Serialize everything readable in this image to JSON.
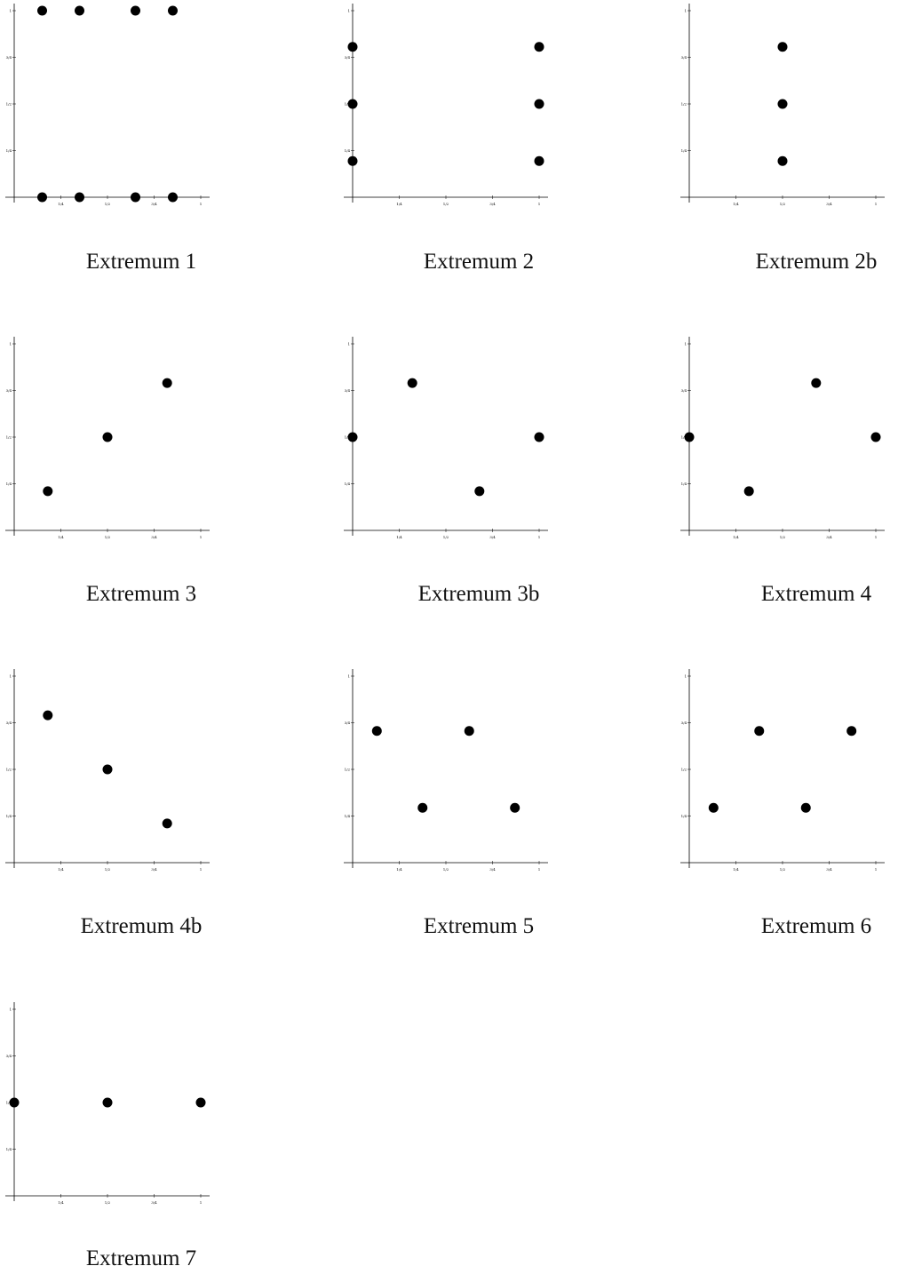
{
  "chart_data": [
    {
      "type": "scatter",
      "title": "Extremum 1",
      "xlim": [
        0,
        1
      ],
      "ylim": [
        0,
        1
      ],
      "xticks": [
        "1/4",
        "1/2",
        "3/4",
        "1"
      ],
      "yticks": [
        "1/4",
        "1/2",
        "3/4",
        "1"
      ],
      "points": [
        [
          0.15,
          1
        ],
        [
          0.35,
          1
        ],
        [
          0.65,
          1
        ],
        [
          0.85,
          1
        ],
        [
          0.15,
          0
        ],
        [
          0.35,
          0
        ],
        [
          0.65,
          0
        ],
        [
          0.85,
          0
        ]
      ]
    },
    {
      "type": "scatter",
      "title": "Extremum 2",
      "xlim": [
        0,
        1
      ],
      "ylim": [
        0,
        1
      ],
      "xticks": [
        "1/4",
        "1/2",
        "3/4",
        "1"
      ],
      "yticks": [
        "1/4",
        "1/2",
        "3/4",
        "1"
      ],
      "points": [
        [
          0,
          0.806
        ],
        [
          0,
          0.5
        ],
        [
          0,
          0.194
        ],
        [
          1,
          0.806
        ],
        [
          1,
          0.5
        ],
        [
          1,
          0.194
        ]
      ]
    },
    {
      "type": "scatter",
      "title": "Extremum 2b",
      "xlim": [
        0,
        1
      ],
      "ylim": [
        0,
        1
      ],
      "xticks": [
        "1/4",
        "1/2",
        "3/4",
        "1"
      ],
      "yticks": [
        "1/4",
        "1/2",
        "3/4",
        "1"
      ],
      "points": [
        [
          0.5,
          0.806
        ],
        [
          0.5,
          0.5
        ],
        [
          0.5,
          0.194
        ]
      ]
    },
    {
      "type": "scatter",
      "title": "Extremum 3",
      "xlim": [
        0,
        1
      ],
      "ylim": [
        0,
        1
      ],
      "xticks": [
        "1/4",
        "1/2",
        "3/4",
        "1"
      ],
      "yticks": [
        "1/4",
        "1/2",
        "3/4",
        "1"
      ],
      "points": [
        [
          0.18,
          0.21
        ],
        [
          0.5,
          0.5
        ],
        [
          0.82,
          0.79
        ]
      ]
    },
    {
      "type": "scatter",
      "title": "Extremum 3b",
      "xlim": [
        0,
        1
      ],
      "ylim": [
        0,
        1
      ],
      "xticks": [
        "1/4",
        "1/2",
        "3/4",
        "1"
      ],
      "yticks": [
        "1/4",
        "1/2",
        "3/4",
        "1"
      ],
      "points": [
        [
          0,
          0.5
        ],
        [
          0.32,
          0.79
        ],
        [
          0.68,
          0.21
        ],
        [
          1,
          0.5
        ]
      ]
    },
    {
      "type": "scatter",
      "title": "Extremum 4",
      "xlim": [
        0,
        1
      ],
      "ylim": [
        0,
        1
      ],
      "xticks": [
        "1/4",
        "1/2",
        "3/4",
        "1"
      ],
      "yticks": [
        "1/4",
        "1/2",
        "3/4",
        "1"
      ],
      "points": [
        [
          0,
          0.5
        ],
        [
          0.32,
          0.21
        ],
        [
          0.68,
          0.79
        ],
        [
          1,
          0.5
        ]
      ]
    },
    {
      "type": "scatter",
      "title": "Extremum 4b",
      "xlim": [
        0,
        1
      ],
      "ylim": [
        0,
        1
      ],
      "xticks": [
        "1/4",
        "1/2",
        "3/4",
        "1"
      ],
      "yticks": [
        "1/4",
        "1/2",
        "3/4",
        "1"
      ],
      "points": [
        [
          0.18,
          0.79
        ],
        [
          0.5,
          0.5
        ],
        [
          0.82,
          0.21
        ]
      ]
    },
    {
      "type": "scatter",
      "title": "Extremum 5",
      "xlim": [
        0,
        1
      ],
      "ylim": [
        0,
        1
      ],
      "xticks": [
        "1/4",
        "1/2",
        "3/4",
        "1"
      ],
      "yticks": [
        "1/4",
        "1/2",
        "3/4",
        "1"
      ],
      "points": [
        [
          0.13,
          0.706
        ],
        [
          0.375,
          0.294
        ],
        [
          0.625,
          0.706
        ],
        [
          0.87,
          0.294
        ]
      ]
    },
    {
      "type": "scatter",
      "title": "Extremum 6",
      "xlim": [
        0,
        1
      ],
      "ylim": [
        0,
        1
      ],
      "xticks": [
        "1/4",
        "1/2",
        "3/4",
        "1"
      ],
      "yticks": [
        "1/4",
        "1/2",
        "3/4",
        "1"
      ],
      "points": [
        [
          0.13,
          0.294
        ],
        [
          0.375,
          0.706
        ],
        [
          0.625,
          0.294
        ],
        [
          0.87,
          0.706
        ]
      ]
    },
    {
      "type": "scatter",
      "title": "Extremum 7",
      "xlim": [
        0,
        1
      ],
      "ylim": [
        0,
        1
      ],
      "xticks": [
        "1/4",
        "1/2",
        "3/4",
        "1"
      ],
      "yticks": [
        "1/4",
        "1/2",
        "3/4",
        "1"
      ],
      "points": [
        [
          0,
          0.5
        ],
        [
          0.5,
          0.5
        ],
        [
          1,
          0.5
        ]
      ]
    }
  ]
}
